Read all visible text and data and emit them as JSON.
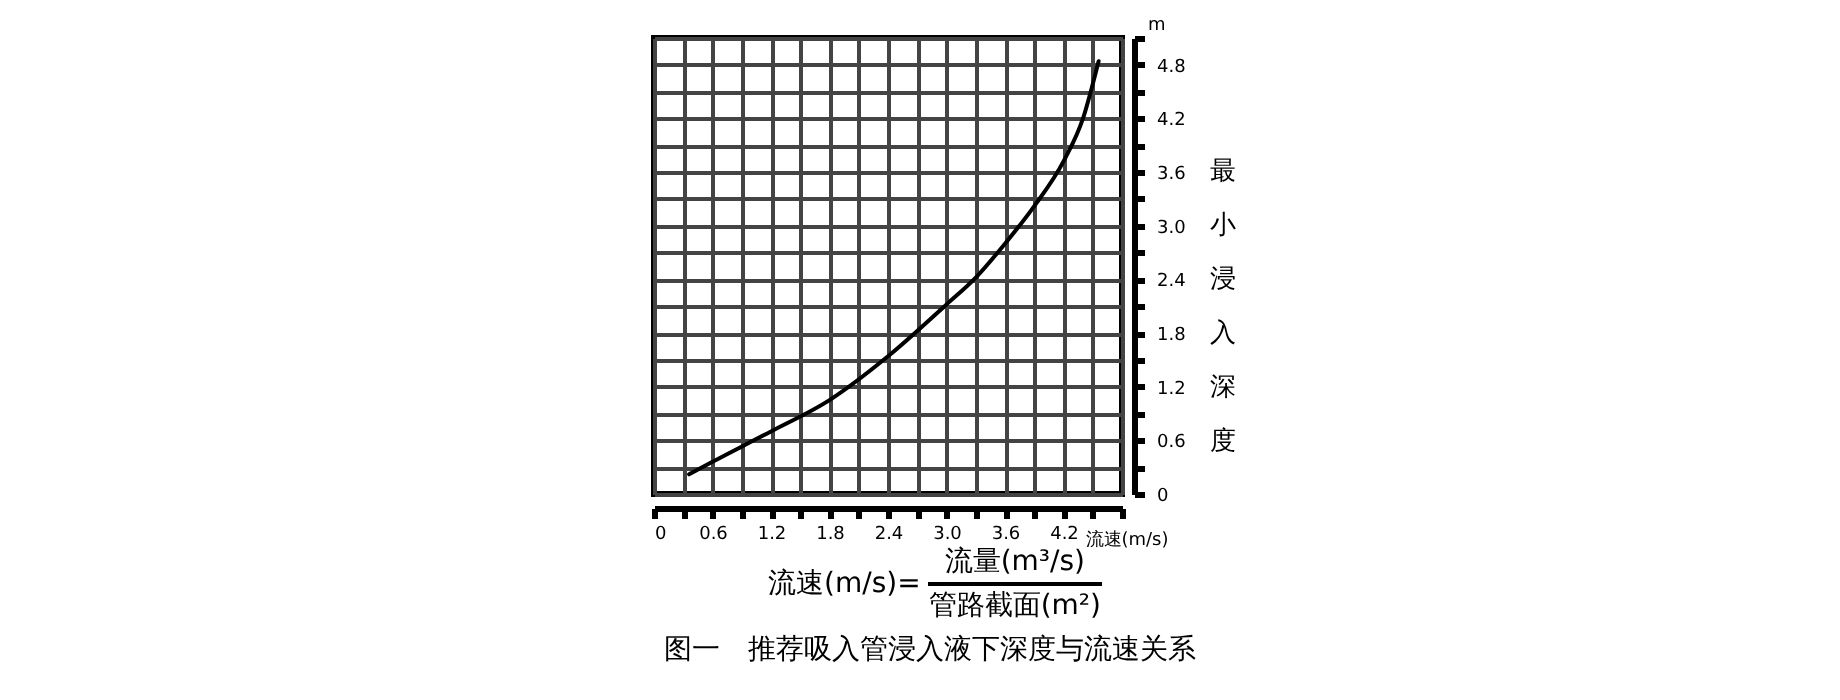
{
  "chart_data": {
    "type": "line",
    "title": "图一　推荐吸入管浸入液下深度与流速关系",
    "xlabel": "流速(m/s)",
    "ylabel": "最小浸入深度",
    "annotations": [
      "m",
      "流速(m/s)=",
      "流量(m³/s)",
      "管路截面(m²)"
    ],
    "x": [
      0.36,
      0.6,
      1.2,
      1.8,
      2.4,
      3.0,
      3.3,
      3.6,
      3.9,
      4.2,
      4.4,
      4.56
    ],
    "series": [
      {
        "color": "#000000",
        "values": [
          0.22,
          0.36,
          0.7,
          1.05,
          1.54,
          2.12,
          2.42,
          2.8,
          3.22,
          3.72,
          4.2,
          4.84
        ]
      }
    ],
    "xlim": [
      0,
      4.8
    ],
    "ylim": [
      0,
      5.1
    ],
    "xticks": [
      0,
      {
        "value": 0.3,
        "label": null
      },
      0.6,
      {
        "value": 0.9,
        "label": null
      },
      1.2,
      {
        "value": 1.5,
        "label": null
      },
      1.8,
      {
        "value": 2.1,
        "label": null
      },
      2.4,
      {
        "value": 2.7,
        "label": null
      },
      {
        "value": 3,
        "label": "3.0"
      },
      {
        "value": 3.3,
        "label": null
      },
      3.6,
      {
        "value": 3.9,
        "label": null
      },
      4.2,
      {
        "value": 4.5,
        "label": null
      },
      {
        "value": 4.8,
        "label": null
      }
    ],
    "yticks": [
      0,
      {
        "value": 0.3,
        "label": null
      },
      0.6,
      {
        "value": 0.9,
        "label": null
      },
      1.2,
      {
        "value": 1.5,
        "label": null
      },
      1.8,
      {
        "value": 2.1,
        "label": null
      },
      2.4,
      {
        "value": 2.7,
        "label": null
      },
      {
        "value": 3,
        "label": "3.0"
      },
      {
        "value": 3.3,
        "label": null
      },
      3.6,
      {
        "value": 3.9,
        "label": null
      },
      4.2,
      {
        "value": 4.5,
        "label": null
      },
      4.8,
      {
        "value": 5.1,
        "label": null
      }
    ],
    "grid": true
  }
}
